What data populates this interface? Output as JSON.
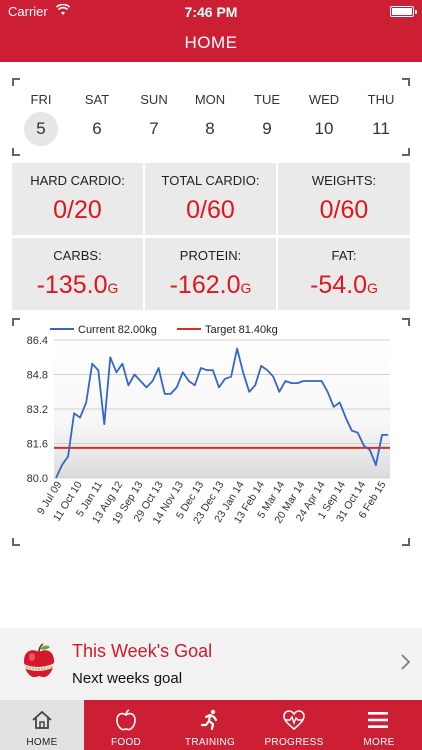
{
  "status_bar": {
    "carrier": "Carrier",
    "time": "7:46 PM"
  },
  "header": {
    "title": "HOME"
  },
  "week": {
    "days": [
      {
        "name": "FRI",
        "date": "5",
        "selected": true
      },
      {
        "name": "SAT",
        "date": "6"
      },
      {
        "name": "SUN",
        "date": "7"
      },
      {
        "name": "MON",
        "date": "8"
      },
      {
        "name": "TUE",
        "date": "9"
      },
      {
        "name": "WED",
        "date": "10"
      },
      {
        "name": "THU",
        "date": "11"
      }
    ]
  },
  "stats": [
    {
      "label": "HARD CARDIO:",
      "value": "0/20",
      "unit": ""
    },
    {
      "label": "TOTAL CARDIO:",
      "value": "0/60",
      "unit": ""
    },
    {
      "label": "WEIGHTS:",
      "value": "0/60",
      "unit": ""
    },
    {
      "label": "CARBS:",
      "value": "-135.0",
      "unit": "G"
    },
    {
      "label": "PROTEIN:",
      "value": "-162.0",
      "unit": "G"
    },
    {
      "label": "FAT:",
      "value": "-54.0",
      "unit": "G"
    }
  ],
  "colors": {
    "brand": "#cc1f33",
    "value_red": "#e0151e",
    "series_current": "#3566c4",
    "series_target": "#d9301c"
  },
  "chart_data": {
    "type": "line",
    "ylim": [
      80.0,
      86.4
    ],
    "yticks": [
      "86.4",
      "84.8",
      "83.2",
      "81.6",
      "80.0"
    ],
    "x_tick_labels": [
      "9 Jul 09",
      "11 Oct 10",
      "5 Jan 11",
      "13 Aug 12",
      "19 Sep 13",
      "29 Oct 13",
      "14 Nov 13",
      "5 Dec 13",
      "23 Dec 13",
      "23 Jan 14",
      "13 Feb 14",
      "5 Mar 14",
      "20 Mar 14",
      "24 Apr 14",
      "1 Sep 14",
      "31 Oct 14",
      "6 Feb 15"
    ],
    "series": [
      {
        "name": "Current 82.00kg",
        "color": "#3566c4",
        "values": [
          80.0,
          80.6,
          81.0,
          83.0,
          82.8,
          83.5,
          85.3,
          85.0,
          82.5,
          85.6,
          84.9,
          85.3,
          84.3,
          84.8,
          84.5,
          84.2,
          84.5,
          85.1,
          83.9,
          83.9,
          84.2,
          84.9,
          84.5,
          84.3,
          85.1,
          85.0,
          85.0,
          84.2,
          84.6,
          84.7,
          86.0,
          84.9,
          84.0,
          84.3,
          85.2,
          85.0,
          84.7,
          84.0,
          84.5,
          84.4,
          84.4,
          84.5,
          84.5,
          84.5,
          84.5,
          84.0,
          83.3,
          83.5,
          82.8,
          82.2,
          82.1,
          81.5,
          81.3,
          80.6,
          82.0,
          82.0
        ]
      },
      {
        "name": "Target 81.40kg",
        "color": "#d9301c",
        "values": [
          81.4
        ]
      }
    ]
  },
  "goal": {
    "title": "This Week's Goal",
    "subtitle": "Next weeks goal"
  },
  "tabbar": {
    "tabs": [
      {
        "label": "HOME",
        "icon": "home-icon",
        "active": true
      },
      {
        "label": "FOOD",
        "icon": "apple-icon"
      },
      {
        "label": "TRAINING",
        "icon": "runner-icon"
      },
      {
        "label": "PROGRESS",
        "icon": "heartbeat-icon"
      },
      {
        "label": "MORE",
        "icon": "menu-icon"
      }
    ]
  }
}
